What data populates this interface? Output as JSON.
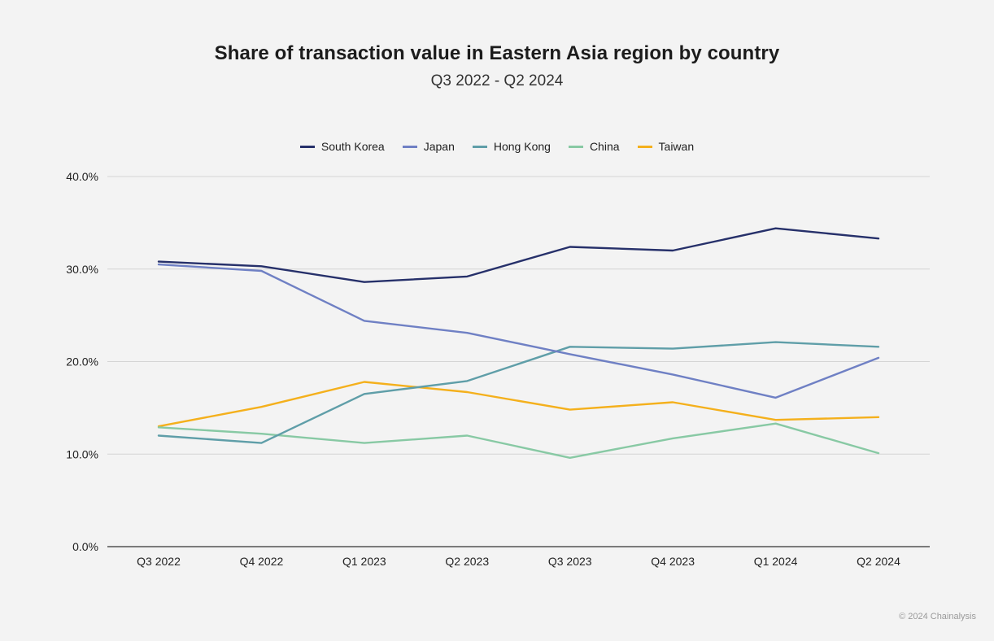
{
  "chart_data": {
    "type": "line",
    "title": "Share of transaction value in Eastern Asia region by country",
    "subtitle": "Q3 2022 - Q2 2024",
    "categories": [
      "Q3 2022",
      "Q4 2022",
      "Q1 2023",
      "Q2 2023",
      "Q3 2023",
      "Q4 2023",
      "Q1 2024",
      "Q2 2024"
    ],
    "y_ticks": [
      "0.0%",
      "10.0%",
      "20.0%",
      "30.0%",
      "40.0%"
    ],
    "ylim": [
      0,
      40
    ],
    "grid": true,
    "legend_position": "top",
    "series": [
      {
        "name": "South Korea",
        "color": "#26306a",
        "values": [
          30.8,
          30.3,
          28.6,
          29.2,
          32.4,
          32.0,
          34.4,
          33.3
        ]
      },
      {
        "name": "Japan",
        "color": "#6f80c4",
        "values": [
          30.5,
          29.8,
          24.4,
          23.1,
          20.8,
          18.6,
          16.1,
          20.4
        ]
      },
      {
        "name": "Hong Kong",
        "color": "#5f9ea8",
        "values": [
          12.0,
          11.2,
          16.5,
          17.9,
          21.6,
          21.4,
          22.1,
          21.6
        ]
      },
      {
        "name": "China",
        "color": "#88c9a4",
        "values": [
          12.9,
          12.2,
          11.2,
          12.0,
          9.6,
          11.7,
          13.3,
          10.1
        ]
      },
      {
        "name": "Taiwan",
        "color": "#f4b01c",
        "values": [
          13.0,
          15.1,
          17.8,
          16.7,
          14.8,
          15.6,
          13.7,
          14.0
        ]
      }
    ]
  },
  "footer": {
    "copyright": "© 2024 Chainalysis"
  }
}
